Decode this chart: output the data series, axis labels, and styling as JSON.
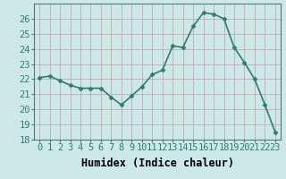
{
  "x": [
    0,
    1,
    2,
    3,
    4,
    5,
    6,
    7,
    8,
    9,
    10,
    11,
    12,
    13,
    14,
    15,
    16,
    17,
    18,
    19,
    20,
    21,
    22,
    23
  ],
  "y": [
    22.1,
    22.2,
    21.9,
    21.6,
    21.4,
    21.4,
    21.4,
    20.8,
    20.3,
    20.9,
    21.5,
    22.3,
    22.6,
    24.2,
    24.1,
    25.5,
    26.4,
    26.3,
    26.0,
    24.1,
    23.1,
    22.0,
    20.3,
    18.5
  ],
  "line_color": "#2e7d6e",
  "marker": "D",
  "marker_size": 2.5,
  "bg_color": "#cce8e8",
  "grid_color": "#c8a8a8",
  "xlabel": "Humidex (Indice chaleur)",
  "ylim": [
    18,
    27
  ],
  "yticks": [
    18,
    19,
    20,
    21,
    22,
    23,
    24,
    25,
    26
  ],
  "xticks": [
    0,
    1,
    2,
    3,
    4,
    5,
    6,
    7,
    8,
    9,
    10,
    11,
    12,
    13,
    14,
    15,
    16,
    17,
    18,
    19,
    20,
    21,
    22,
    23
  ],
  "line_width": 1.2,
  "tick_fontsize": 7.5,
  "xlabel_fontsize": 8.5
}
